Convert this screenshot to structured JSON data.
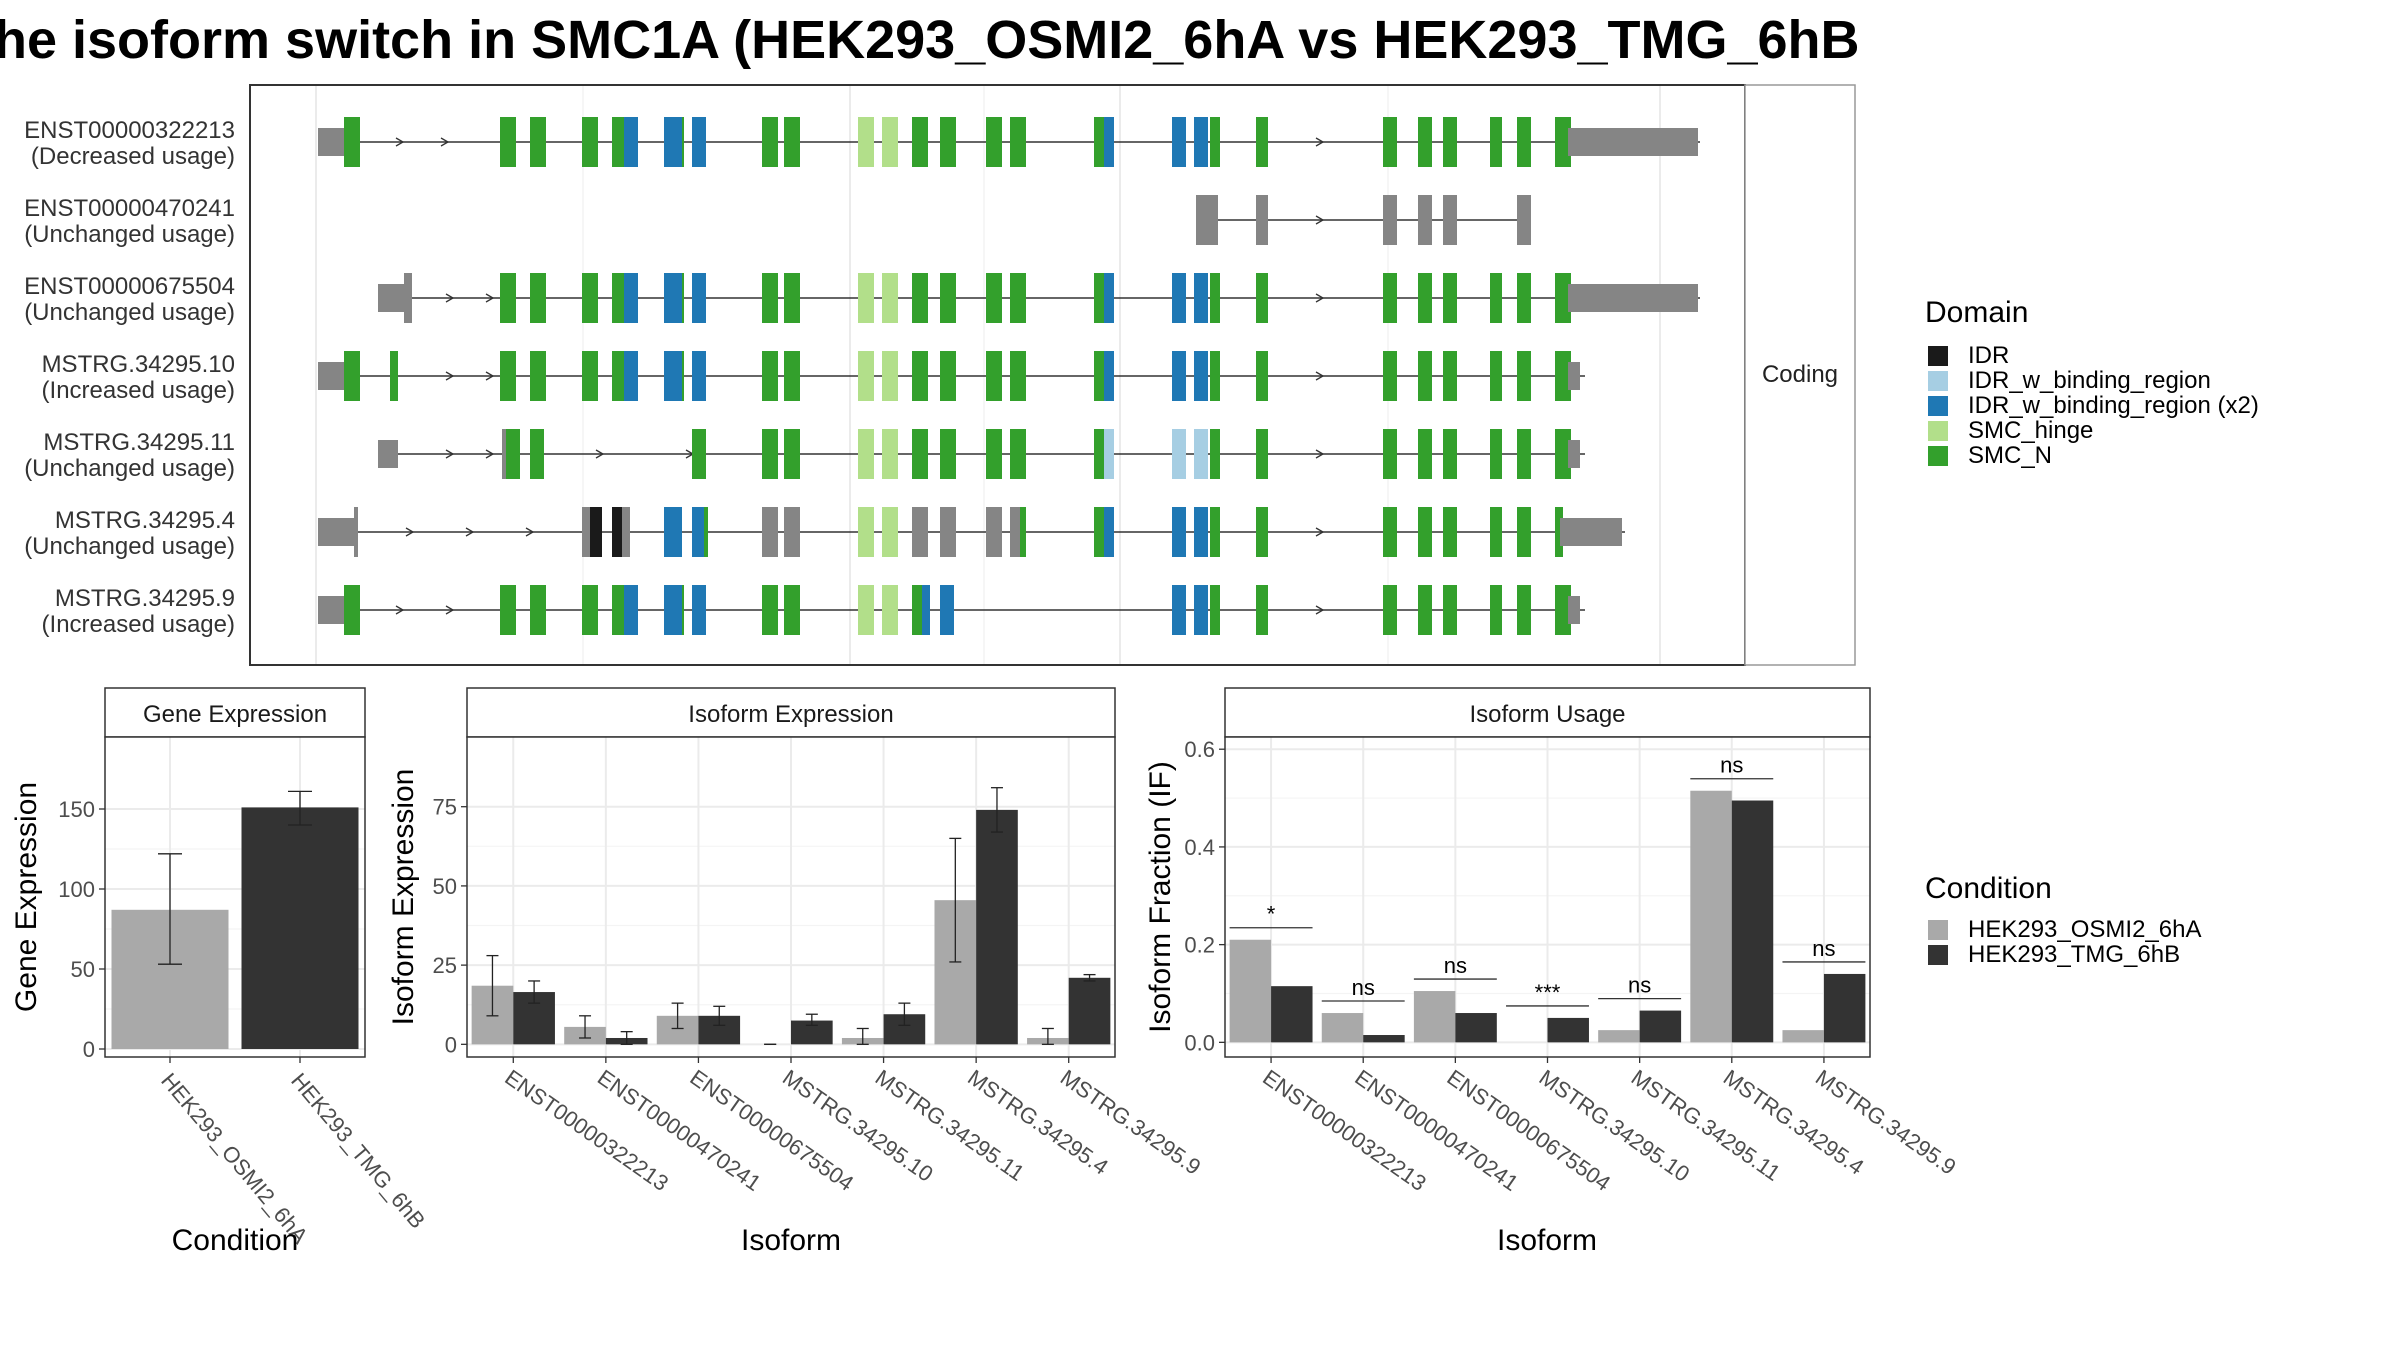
{
  "page_title": "he isoform switch in SMC1A (HEK293_OSMI2_6hA vs HEK293_TMG_6hB",
  "transcript_panel": {
    "strip_label": "Coding",
    "transcripts": [
      {
        "id": "ENST00000322213",
        "usage": "(Decreased usage)"
      },
      {
        "id": "ENST00000470241",
        "usage": "(Unchanged usage)"
      },
      {
        "id": "ENST00000675504",
        "usage": "(Unchanged usage)"
      },
      {
        "id": "MSTRG.34295.10",
        "usage": "(Increased usage)"
      },
      {
        "id": "MSTRG.34295.11",
        "usage": "(Unchanged usage)"
      },
      {
        "id": "MSTRG.34295.4",
        "usage": "(Unchanged usage)"
      },
      {
        "id": "MSTRG.34295.9",
        "usage": "(Increased usage)"
      }
    ]
  },
  "legend_domain": {
    "title": "Domain",
    "items": [
      {
        "label": "IDR",
        "color": "#1a1a1a"
      },
      {
        "label": "IDR_w_binding_region",
        "color": "#a6cee3"
      },
      {
        "label": "IDR_w_binding_region (x2)",
        "color": "#1f78b4"
      },
      {
        "label": "SMC_hinge",
        "color": "#b2df8a"
      },
      {
        "label": "SMC_N",
        "color": "#33a02c"
      }
    ]
  },
  "legend_condition": {
    "title": "Condition",
    "items": [
      {
        "label": "HEK293_OSMI2_6hA",
        "color": "#a9a9a9"
      },
      {
        "label": "HEK293_TMG_6hB",
        "color": "#333333"
      }
    ]
  },
  "chart_data": [
    {
      "type": "bar",
      "title": "Gene Expression",
      "xlabel": "Condition",
      "ylabel": "Gene Expression",
      "categories": [
        "HEK293_OSMI2_6hA",
        "HEK293_TMG_6hB"
      ],
      "values": [
        87,
        151
      ],
      "errors": [
        [
          53,
          122
        ],
        [
          140,
          161
        ]
      ],
      "colors": [
        "#a9a9a9",
        "#333333"
      ],
      "ylim": [
        -5,
        195
      ],
      "yticks": [
        0,
        50,
        100,
        150
      ],
      "grid": true
    },
    {
      "type": "bar",
      "title": "Isoform Expression",
      "xlabel": "Isoform",
      "ylabel": "Isoform Expression",
      "categories": [
        "ENST00000322213",
        "ENST00000470241",
        "ENST00000675504",
        "MSTRG.34295.10",
        "MSTRG.34295.11",
        "MSTRG.34295.4",
        "MSTRG.34295.9"
      ],
      "series": [
        {
          "name": "HEK293_OSMI2_6hA",
          "color": "#a9a9a9",
          "values": [
            18.5,
            5.5,
            9,
            0,
            2,
            45.5,
            2
          ],
          "errors": [
            [
              9,
              28
            ],
            [
              2,
              9
            ],
            [
              5,
              13
            ],
            [
              0,
              0
            ],
            [
              0,
              5
            ],
            [
              26,
              65
            ],
            [
              0,
              5
            ]
          ]
        },
        {
          "name": "HEK293_TMG_6hB",
          "color": "#333333",
          "values": [
            16.5,
            2,
            9,
            7.5,
            9.5,
            74,
            21
          ],
          "errors": [
            [
              13,
              20
            ],
            [
              0,
              4
            ],
            [
              6,
              12
            ],
            [
              6,
              9.5
            ],
            [
              6,
              13
            ],
            [
              67,
              81
            ],
            [
              20,
              22
            ]
          ]
        }
      ],
      "ylim": [
        -4,
        97
      ],
      "yticks": [
        0,
        25,
        50,
        75
      ],
      "grid": true
    },
    {
      "type": "bar",
      "title": "Isoform Usage",
      "xlabel": "Isoform",
      "ylabel": "Isoform Fraction (IF)",
      "categories": [
        "ENST00000322213",
        "ENST00000470241",
        "ENST00000675504",
        "MSTRG.34295.10",
        "MSTRG.34295.11",
        "MSTRG.34295.4",
        "MSTRG.34295.9"
      ],
      "series": [
        {
          "name": "HEK293_OSMI2_6hA",
          "color": "#a9a9a9",
          "values": [
            0.21,
            0.06,
            0.105,
            0.0,
            0.025,
            0.515,
            0.025
          ]
        },
        {
          "name": "HEK293_TMG_6hB",
          "color": "#333333",
          "values": [
            0.115,
            0.015,
            0.06,
            0.05,
            0.065,
            0.495,
            0.14
          ]
        }
      ],
      "significance": [
        "*",
        "ns",
        "ns",
        "***",
        "ns",
        "ns",
        "ns"
      ],
      "ylim": [
        -0.03,
        0.625
      ],
      "yticks": [
        0.0,
        0.2,
        0.4,
        0.6
      ],
      "ytick_labels": [
        "0.0",
        "0.2",
        "0.4",
        "0.6"
      ],
      "grid": true
    }
  ]
}
